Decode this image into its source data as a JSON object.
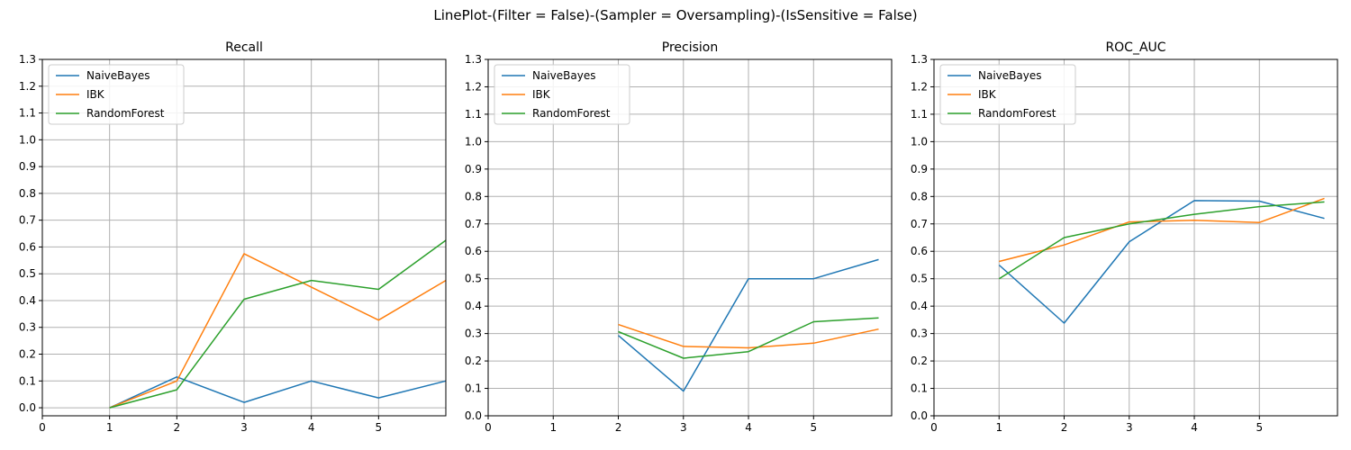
{
  "figure_title": "LinePlot-(Filter = False)-(Sampler = Oversampling)-(IsSensitive = False)",
  "colors": {
    "NaiveBayes": "#1f77b4",
    "IBK": "#ff7f0e",
    "RandomForest": "#2ca02c"
  },
  "chart_data": [
    {
      "type": "line",
      "title": "Recall",
      "xlim": [
        0,
        6
      ],
      "ylim": [
        -0.03,
        1.3
      ],
      "xticks": [
        0,
        1,
        2,
        3,
        4,
        5
      ],
      "yticks": [
        0.0,
        0.1,
        0.2,
        0.3,
        0.4,
        0.5,
        0.6,
        0.7,
        0.8,
        0.9,
        1.0,
        1.1,
        1.2,
        1.3
      ],
      "grid": true,
      "legend": "upper-left",
      "series": [
        {
          "name": "NaiveBayes",
          "x": [
            1,
            2,
            3,
            4,
            5,
            6
          ],
          "values": [
            0.0,
            0.115,
            0.02,
            0.1,
            0.037,
            0.1
          ]
        },
        {
          "name": "IBK",
          "x": [
            1,
            2,
            3,
            4,
            5,
            6
          ],
          "values": [
            0.0,
            0.1,
            0.575,
            0.45,
            0.327,
            0.475
          ]
        },
        {
          "name": "RandomForest",
          "x": [
            1,
            2,
            3,
            4,
            5,
            6
          ],
          "values": [
            0.0,
            0.067,
            0.405,
            0.475,
            0.442,
            0.625
          ]
        }
      ]
    },
    {
      "type": "line",
      "title": "Precision",
      "xlim": [
        0,
        6.2
      ],
      "ylim": [
        0.0,
        1.3
      ],
      "xticks": [
        0,
        1,
        2,
        3,
        4,
        5
      ],
      "yticks": [
        0.0,
        0.1,
        0.2,
        0.3,
        0.4,
        0.5,
        0.6,
        0.7,
        0.8,
        0.9,
        1.0,
        1.1,
        1.2,
        1.3
      ],
      "grid": true,
      "legend": "upper-left",
      "series": [
        {
          "name": "NaiveBayes",
          "x": [
            2,
            3,
            4,
            5,
            6
          ],
          "values": [
            0.293,
            0.09,
            0.5,
            0.5,
            0.57
          ]
        },
        {
          "name": "IBK",
          "x": [
            2,
            3,
            4,
            5,
            6
          ],
          "values": [
            0.333,
            0.253,
            0.248,
            0.265,
            0.316
          ]
        },
        {
          "name": "RandomForest",
          "x": [
            2,
            3,
            4,
            5,
            6
          ],
          "values": [
            0.307,
            0.21,
            0.234,
            0.343,
            0.357
          ]
        }
      ]
    },
    {
      "type": "line",
      "title": "ROC_AUC",
      "xlim": [
        0,
        6.2
      ],
      "ylim": [
        0.0,
        1.3
      ],
      "xticks": [
        0,
        1,
        2,
        3,
        4,
        5
      ],
      "yticks": [
        0.0,
        0.1,
        0.2,
        0.3,
        0.4,
        0.5,
        0.6,
        0.7,
        0.8,
        0.9,
        1.0,
        1.1,
        1.2,
        1.3
      ],
      "grid": true,
      "legend": "upper-left",
      "series": [
        {
          "name": "NaiveBayes",
          "x": [
            1,
            2,
            3,
            4,
            5,
            6
          ],
          "values": [
            0.55,
            0.338,
            0.635,
            0.785,
            0.783,
            0.72
          ]
        },
        {
          "name": "IBK",
          "x": [
            1,
            2,
            3,
            4,
            5,
            6
          ],
          "values": [
            0.563,
            0.623,
            0.707,
            0.713,
            0.705,
            0.793
          ]
        },
        {
          "name": "RandomForest",
          "x": [
            1,
            2,
            3,
            4,
            5,
            6
          ],
          "values": [
            0.5,
            0.65,
            0.7,
            0.735,
            0.763,
            0.78
          ]
        }
      ]
    }
  ]
}
